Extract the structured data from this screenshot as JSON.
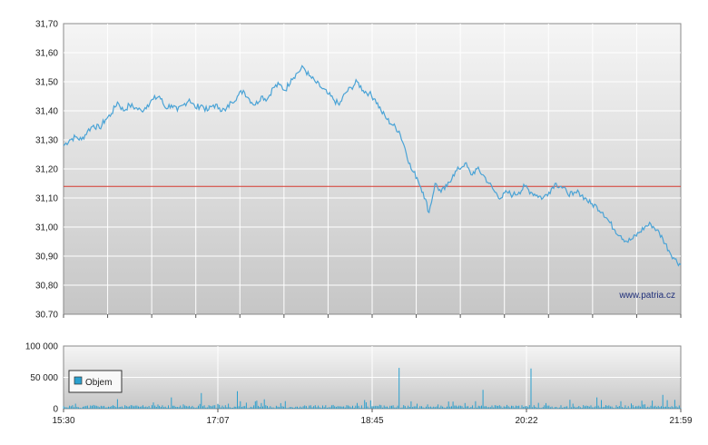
{
  "watermark": "www.patria.cz",
  "colors": {
    "price_line": "#4aa3d6",
    "reference_line": "#d63a2f",
    "grid": "#ffffff",
    "panel_top": "#f4f4f4",
    "panel_bottom": "#c8c8c8",
    "volume_bar": "#2aa0cf"
  },
  "chart_data": [
    {
      "type": "line",
      "name": "price",
      "ylim": [
        30.7,
        31.7
      ],
      "yticks": [
        "31,70",
        "31,60",
        "31,50",
        "31,40",
        "31,30",
        "31,20",
        "31,10",
        "31,00",
        "30,90",
        "30,80",
        "30.70"
      ],
      "reference_value": 31.14,
      "grid": true,
      "series": [
        {
          "points": [
            [
              0,
              31.28
            ],
            [
              2,
              31.3
            ],
            [
              4,
              31.31
            ],
            [
              6,
              31.3
            ],
            [
              8,
              31.33
            ],
            [
              10,
              31.35
            ],
            [
              12,
              31.34
            ],
            [
              14,
              31.37
            ],
            [
              16,
              31.39
            ],
            [
              18,
              31.43
            ],
            [
              20,
              31.4
            ],
            [
              22,
              31.42
            ],
            [
              24,
              31.41
            ],
            [
              26,
              31.4
            ],
            [
              28,
              31.42
            ],
            [
              30,
              31.44
            ],
            [
              32,
              31.45
            ],
            [
              34,
              31.41
            ],
            [
              36,
              31.42
            ],
            [
              38,
              31.4
            ],
            [
              40,
              31.42
            ],
            [
              42,
              31.44
            ],
            [
              44,
              31.41
            ],
            [
              46,
              31.42
            ],
            [
              48,
              31.4
            ],
            [
              50,
              31.42
            ],
            [
              52,
              31.41
            ],
            [
              54,
              31.4
            ],
            [
              56,
              31.43
            ],
            [
              58,
              31.45
            ],
            [
              60,
              31.47
            ],
            [
              62,
              31.44
            ],
            [
              64,
              31.42
            ],
            [
              66,
              31.45
            ],
            [
              68,
              31.44
            ],
            [
              70,
              31.48
            ],
            [
              72,
              31.49
            ],
            [
              74,
              31.47
            ],
            [
              76,
              31.51
            ],
            [
              78,
              31.53
            ],
            [
              80,
              31.55
            ],
            [
              82,
              31.52
            ],
            [
              84,
              31.5
            ],
            [
              86,
              31.48
            ],
            [
              88,
              31.46
            ],
            [
              90,
              31.44
            ],
            [
              92,
              31.42
            ],
            [
              94,
              31.46
            ],
            [
              96,
              31.48
            ],
            [
              98,
              31.5
            ],
            [
              100,
              31.47
            ],
            [
              102,
              31.46
            ],
            [
              104,
              31.44
            ],
            [
              106,
              31.4
            ],
            [
              108,
              31.37
            ],
            [
              110,
              31.35
            ],
            [
              112,
              31.33
            ],
            [
              114,
              31.27
            ],
            [
              116,
              31.2
            ],
            [
              118,
              31.17
            ],
            [
              120,
              31.12
            ],
            [
              122,
              31.05
            ],
            [
              124,
              31.15
            ],
            [
              126,
              31.12
            ],
            [
              128,
              31.14
            ],
            [
              130,
              31.18
            ],
            [
              132,
              31.2
            ],
            [
              134,
              31.22
            ],
            [
              136,
              31.18
            ],
            [
              138,
              31.2
            ],
            [
              140,
              31.18
            ],
            [
              142,
              31.15
            ],
            [
              144,
              31.12
            ],
            [
              146,
              31.1
            ],
            [
              148,
              31.12
            ],
            [
              150,
              31.11
            ],
            [
              152,
              31.12
            ],
            [
              154,
              31.14
            ],
            [
              156,
              31.12
            ],
            [
              158,
              31.11
            ],
            [
              160,
              31.1
            ],
            [
              162,
              31.12
            ],
            [
              164,
              31.15
            ],
            [
              166,
              31.14
            ],
            [
              168,
              31.12
            ],
            [
              170,
              31.11
            ],
            [
              172,
              31.12
            ],
            [
              174,
              31.1
            ],
            [
              176,
              31.08
            ],
            [
              178,
              31.07
            ],
            [
              180,
              31.05
            ],
            [
              182,
              31.02
            ],
            [
              184,
              30.99
            ],
            [
              186,
              30.97
            ],
            [
              188,
              30.95
            ],
            [
              190,
              30.96
            ],
            [
              192,
              30.98
            ],
            [
              194,
              31.0
            ],
            [
              196,
              31.01
            ],
            [
              198,
              30.99
            ],
            [
              200,
              30.96
            ],
            [
              202,
              30.92
            ],
            [
              204,
              30.89
            ],
            [
              206,
              30.87
            ]
          ]
        }
      ],
      "xlim": [
        0,
        206
      ]
    },
    {
      "type": "bar",
      "name": "volume",
      "ylim": [
        0,
        100000
      ],
      "yticks": [
        "100 000",
        "50 000",
        "0"
      ],
      "legend": "Objem",
      "legend_position": "top-left",
      "xticks": [
        "15:30",
        "17:07",
        "18:45",
        "20:22",
        "21:59"
      ],
      "spikes": [
        [
          4,
          8000
        ],
        [
          10,
          6000
        ],
        [
          18,
          15000
        ],
        [
          24,
          5000
        ],
        [
          30,
          10000
        ],
        [
          36,
          18000
        ],
        [
          40,
          7000
        ],
        [
          46,
          25000
        ],
        [
          52,
          6000
        ],
        [
          58,
          28000
        ],
        [
          66,
          9000
        ],
        [
          74,
          12000
        ],
        [
          82,
          5000
        ],
        [
          90,
          6000
        ],
        [
          98,
          9000
        ],
        [
          105,
          4000
        ],
        [
          112,
          65000
        ],
        [
          118,
          8000
        ],
        [
          126,
          5000
        ],
        [
          134,
          9000
        ],
        [
          140,
          30000
        ],
        [
          148,
          6000
        ],
        [
          156,
          64000
        ],
        [
          162,
          5000
        ],
        [
          170,
          8000
        ],
        [
          178,
          18000
        ],
        [
          186,
          12000
        ],
        [
          194,
          7000
        ],
        [
          200,
          22000
        ],
        [
          204,
          14000
        ]
      ],
      "baseline": 3000
    }
  ]
}
